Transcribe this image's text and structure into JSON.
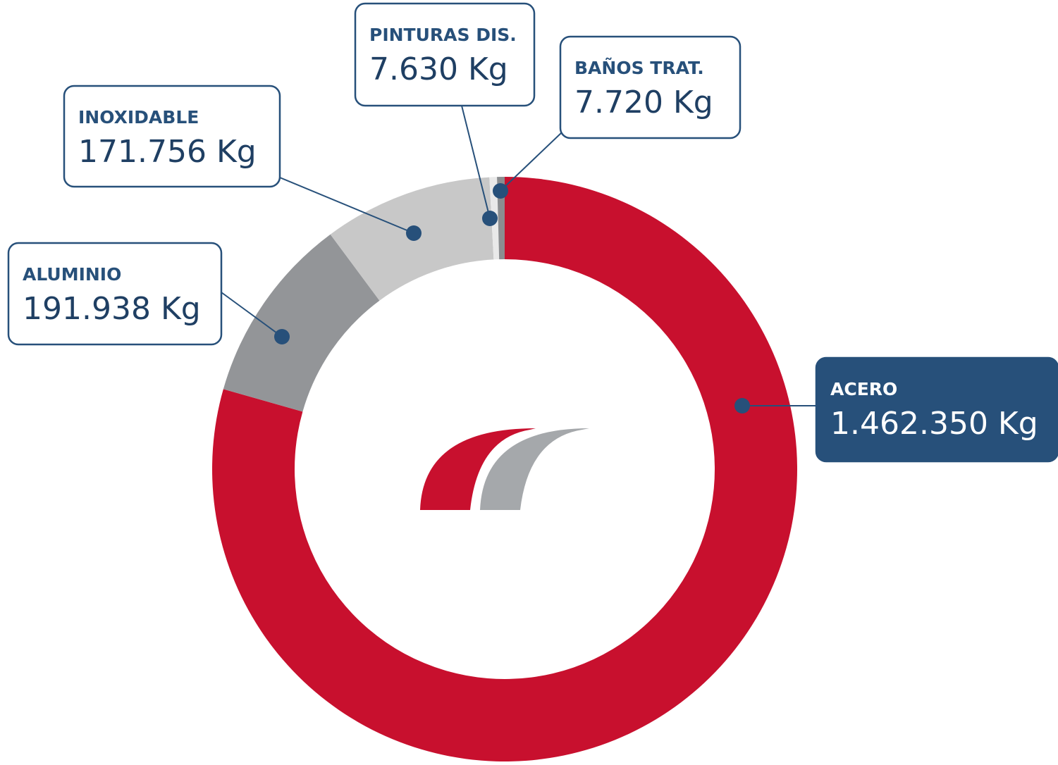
{
  "chart_data": {
    "type": "donut",
    "categories": [
      "ACERO",
      "ALUMINIO",
      "INOXIDABLE",
      "PINTURAS DIS.",
      "BAÑOS TRAT."
    ],
    "values": [
      1462350,
      191938,
      171756,
      7630,
      7720
    ],
    "value_labels": [
      "1.462.350 Kg",
      "191.938 Kg",
      "171.756 Kg",
      "7.630 Kg",
      "7.720 Kg"
    ],
    "colors": [
      "#c8102e",
      "#939598",
      "#c8c8c8",
      "#e9e9e9",
      "#8b8d90"
    ]
  }
}
